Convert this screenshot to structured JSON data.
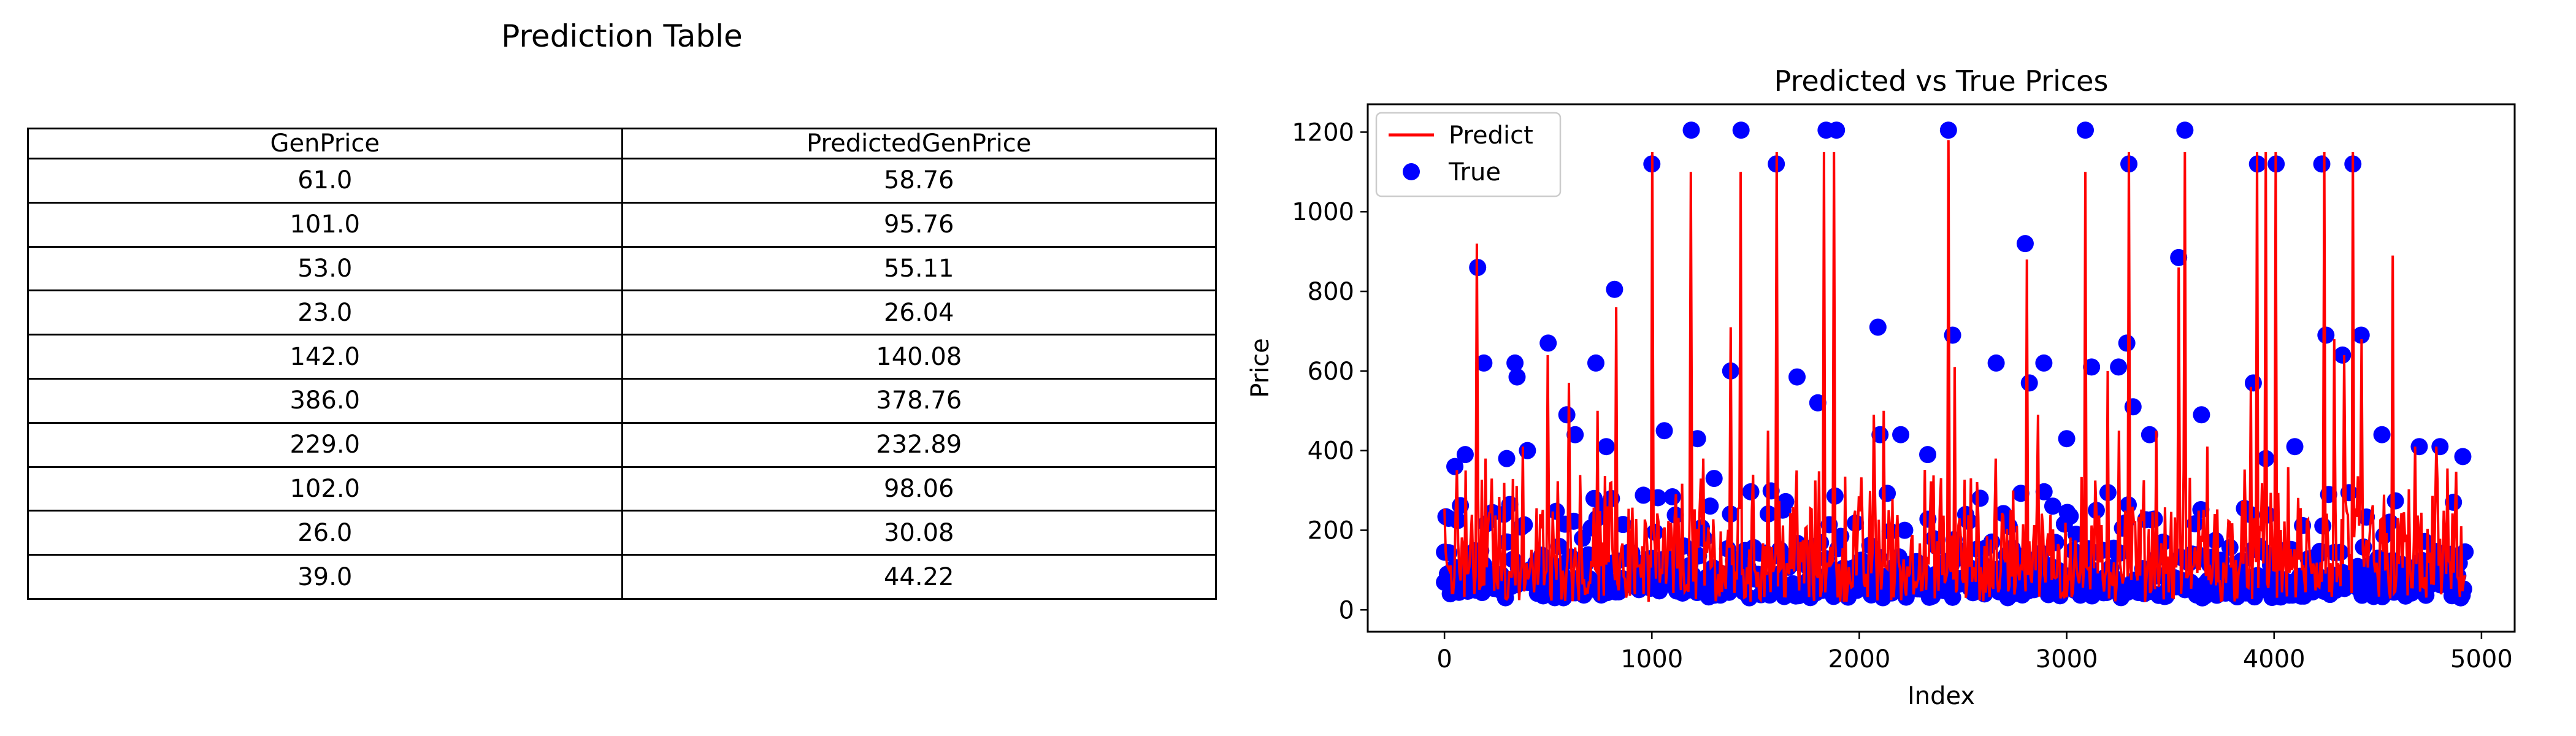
{
  "table_title": "Prediction Table",
  "table": {
    "columns": [
      "GenPrice",
      "PredictedGenPrice"
    ],
    "rows": [
      [
        "61.0",
        "58.76"
      ],
      [
        "101.0",
        "95.76"
      ],
      [
        "53.0",
        "55.11"
      ],
      [
        "23.0",
        "26.04"
      ],
      [
        "142.0",
        "140.08"
      ],
      [
        "386.0",
        "378.76"
      ],
      [
        "229.0",
        "232.89"
      ],
      [
        "102.0",
        "98.06"
      ],
      [
        "26.0",
        "30.08"
      ],
      [
        "39.0",
        "44.22"
      ]
    ]
  },
  "chart_data": [
    {
      "type": "table",
      "title": "Prediction Table",
      "columns": [
        "GenPrice",
        "PredictedGenPrice"
      ],
      "rows": [
        [
          61.0,
          58.76
        ],
        [
          101.0,
          95.76
        ],
        [
          53.0,
          55.11
        ],
        [
          23.0,
          26.04
        ],
        [
          142.0,
          140.08
        ],
        [
          386.0,
          378.76
        ],
        [
          229.0,
          232.89
        ],
        [
          102.0,
          98.06
        ],
        [
          26.0,
          30.08
        ],
        [
          39.0,
          44.22
        ]
      ]
    },
    {
      "type": "line",
      "title": "Predicted vs True Prices",
      "xlabel": "Index",
      "ylabel": "Price",
      "xlim": [
        -370,
        5160
      ],
      "ylim": [
        -55,
        1270
      ],
      "xticks": [
        0,
        1000,
        2000,
        3000,
        4000,
        5000
      ],
      "yticks": [
        0,
        200,
        400,
        600,
        800,
        1000,
        1200
      ],
      "legend_position": "top-left",
      "grid": false,
      "series": [
        {
          "name": "Predict",
          "type": "line",
          "color": "#ff0000",
          "spikes": [
            [
              100,
              350
            ],
            [
              155,
              920
            ],
            [
              200,
              380
            ],
            [
              380,
              410
            ],
            [
              500,
              640
            ],
            [
              600,
              570
            ],
            [
              740,
              500
            ],
            [
              830,
              760
            ],
            [
              1000,
              1150
            ],
            [
              1190,
              1100
            ],
            [
              1250,
              380
            ],
            [
              1380,
              710
            ],
            [
              1430,
              1100
            ],
            [
              1560,
              450
            ],
            [
              1600,
              1150
            ],
            [
              1700,
              350
            ],
            [
              1830,
              1150
            ],
            [
              1880,
              1150
            ],
            [
              2070,
              490
            ],
            [
              2120,
              500
            ],
            [
              2430,
              1180
            ],
            [
              2460,
              610
            ],
            [
              2660,
              380
            ],
            [
              2810,
              880
            ],
            [
              2860,
              490
            ],
            [
              3090,
              1100
            ],
            [
              3200,
              600
            ],
            [
              3250,
              450
            ],
            [
              3300,
              1150
            ],
            [
              3430,
              450
            ],
            [
              3540,
              860
            ],
            [
              3570,
              1150
            ],
            [
              3680,
              410
            ],
            [
              3890,
              560
            ],
            [
              3920,
              1150
            ],
            [
              3960,
              1150
            ],
            [
              4010,
              1150
            ],
            [
              4240,
              1150
            ],
            [
              4290,
              680
            ],
            [
              4340,
              640
            ],
            [
              4380,
              1150
            ],
            [
              4420,
              680
            ],
            [
              4570,
              890
            ],
            [
              4680,
              410
            ],
            [
              4780,
              410
            ],
            [
              4870,
              230
            ]
          ]
        },
        {
          "name": "True",
          "type": "scatter",
          "color": "#0000ff",
          "outliers": [
            [
              0,
              145
            ],
            [
              20,
              230
            ],
            [
              50,
              360
            ],
            [
              100,
              390
            ],
            [
              160,
              860
            ],
            [
              190,
              620
            ],
            [
              300,
              380
            ],
            [
              340,
              620
            ],
            [
              350,
              585
            ],
            [
              400,
              400
            ],
            [
              500,
              670
            ],
            [
              590,
              490
            ],
            [
              630,
              440
            ],
            [
              730,
              620
            ],
            [
              780,
              410
            ],
            [
              820,
              805
            ],
            [
              1000,
              1120
            ],
            [
              1060,
              450
            ],
            [
              1190,
              1205
            ],
            [
              1220,
              430
            ],
            [
              1300,
              330
            ],
            [
              1380,
              600
            ],
            [
              1430,
              1205
            ],
            [
              1600,
              1120
            ],
            [
              1700,
              585
            ],
            [
              1800,
              520
            ],
            [
              1840,
              1205
            ],
            [
              1890,
              1205
            ],
            [
              2090,
              710
            ],
            [
              2100,
              440
            ],
            [
              2200,
              440
            ],
            [
              2330,
              390
            ],
            [
              2430,
              1205
            ],
            [
              2450,
              690
            ],
            [
              2660,
              620
            ],
            [
              2800,
              920
            ],
            [
              2820,
              570
            ],
            [
              2890,
              620
            ],
            [
              3000,
              430
            ],
            [
              3090,
              1205
            ],
            [
              3120,
              610
            ],
            [
              3250,
              610
            ],
            [
              3290,
              670
            ],
            [
              3300,
              1120
            ],
            [
              3320,
              510
            ],
            [
              3400,
              440
            ],
            [
              3540,
              885
            ],
            [
              3570,
              1205
            ],
            [
              3650,
              490
            ],
            [
              3900,
              570
            ],
            [
              3920,
              1120
            ],
            [
              3960,
              380
            ],
            [
              4010,
              1120
            ],
            [
              4100,
              410
            ],
            [
              4230,
              1120
            ],
            [
              4250,
              690
            ],
            [
              4330,
              640
            ],
            [
              4380,
              1120
            ],
            [
              4420,
              690
            ],
            [
              4520,
              440
            ],
            [
              4700,
              410
            ],
            [
              4800,
              410
            ],
            [
              4910,
              385
            ]
          ]
        }
      ]
    }
  ]
}
